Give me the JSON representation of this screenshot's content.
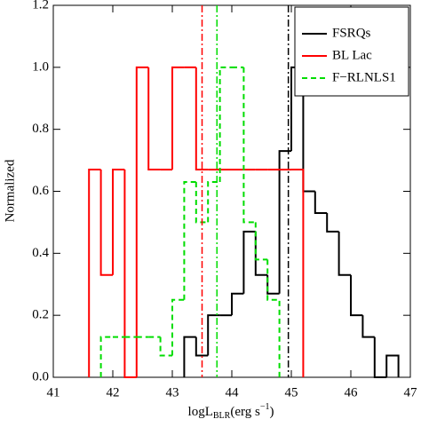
{
  "chart_data": {
    "type": "histogram",
    "xlabel": {
      "main": "logL",
      "sub": "BLR",
      "mid": "(erg s",
      "sup": "−1",
      "end": ")"
    },
    "ylabel": "Normalized",
    "xlim": [
      41,
      47
    ],
    "xticks": [
      41,
      42,
      43,
      44,
      45,
      46,
      47
    ],
    "ylim": [
      0,
      1.2
    ],
    "yticks": [
      {
        "value": 0,
        "label": "0.0"
      },
      0.2,
      0.4,
      0.6,
      0.8,
      {
        "value": 1,
        "label": "1.0"
      },
      1.2
    ],
    "legend": "upper right",
    "series": [
      {
        "name": "FSRQs",
        "color": "#000000",
        "dashed": false,
        "bins": [
          43.2,
          43.4,
          43.6,
          43.8,
          44.0,
          44.2,
          44.4,
          44.6,
          44.8,
          45.0,
          45.2,
          45.4,
          45.6,
          45.8,
          46.0,
          46.2,
          46.4,
          46.6,
          46.8
        ],
        "values": [
          0.13,
          0.07,
          0.2,
          0.2,
          0.27,
          0.47,
          0.33,
          0.27,
          0.73,
          1.0,
          0.6,
          0.53,
          0.47,
          0.33,
          0.2,
          0.13,
          0.0,
          0.07
        ]
      },
      {
        "name": "BL Lac",
        "color": "#ff0000",
        "dashed": false,
        "bins": [
          41.6,
          41.8,
          42.0,
          42.2,
          42.4,
          42.6,
          42.8,
          43.0,
          43.2,
          43.4,
          43.6,
          43.8,
          44.0,
          44.2,
          44.4,
          44.6,
          44.8,
          45.0,
          45.2
        ],
        "values": [
          0.67,
          0.33,
          0.67,
          0.0,
          1.0,
          0.67,
          0.67,
          1.0,
          1.0,
          0.67,
          0.67,
          0.67,
          0.67,
          0.67,
          0.67,
          0.67,
          0.67,
          0.67
        ]
      },
      {
        "name": "F−RLNLS1",
        "color": "#00dd00",
        "dashed": true,
        "bins": [
          41.8,
          42.0,
          42.2,
          42.4,
          42.6,
          42.8,
          43.0,
          43.2,
          43.4,
          43.6,
          43.8,
          44.0,
          44.2,
          44.4,
          44.6,
          44.8
        ],
        "values": [
          0.13,
          0.13,
          0.13,
          0.13,
          0.13,
          0.07,
          0.25,
          0.63,
          0.5,
          0.63,
          1.0,
          1.0,
          0.5,
          0.38,
          0.25
        ]
      }
    ],
    "vlines": [
      {
        "x": 43.5,
        "color": "#ff0000"
      },
      {
        "x": 43.75,
        "color": "#00dd00"
      },
      {
        "x": 44.95,
        "color": "#000000"
      }
    ]
  }
}
